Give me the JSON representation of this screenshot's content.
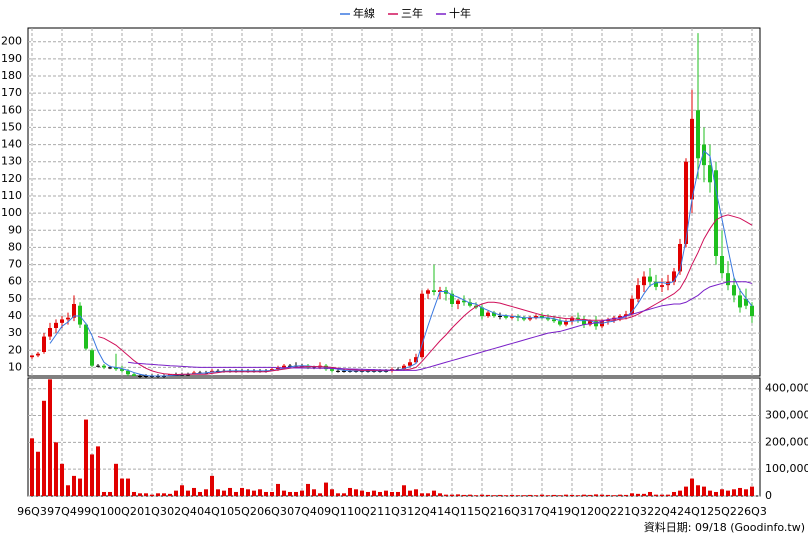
{
  "chart_data": {
    "type": "candlestick",
    "categories": [
      "96Q3",
      null,
      null,
      null,
      null,
      "97Q4",
      null,
      null,
      null,
      null,
      "99Q1",
      null,
      null,
      null,
      null,
      "00Q2",
      null,
      null,
      null,
      null,
      "01Q3",
      null,
      null,
      null,
      null,
      "02Q4",
      null,
      null,
      null,
      null,
      "04Q1",
      null,
      null,
      null,
      null,
      "05Q2",
      null,
      null,
      null,
      null,
      "06Q3",
      null,
      null,
      null,
      null,
      "07Q4",
      null,
      null,
      null,
      null,
      "09Q1",
      null,
      null,
      null,
      null,
      "10Q2",
      null,
      null,
      null,
      null,
      "11Q3",
      null,
      null,
      null,
      null,
      "12Q4",
      null,
      null,
      null,
      null,
      "14Q1",
      null,
      null,
      null,
      null,
      "15Q2",
      null,
      null,
      null,
      null,
      "16Q3",
      null,
      null,
      null,
      null,
      "17Q4",
      null,
      null,
      null,
      null,
      "19Q1",
      null,
      null,
      null,
      null,
      "20Q2",
      null,
      null,
      null,
      null,
      "21Q3",
      null,
      null,
      null,
      null,
      "22Q4",
      null,
      null,
      null,
      null,
      "24Q1",
      null,
      null,
      null,
      null,
      "25Q2",
      null,
      null,
      null,
      null,
      "26Q3"
    ],
    "open": [
      16,
      17,
      19,
      28,
      33,
      36,
      38,
      39,
      46,
      35,
      20,
      11,
      11,
      10,
      10,
      9,
      8,
      6,
      5,
      5,
      5,
      5,
      5,
      5,
      6,
      6,
      6,
      6,
      7,
      7,
      7,
      8,
      8,
      8,
      8,
      8,
      8,
      8,
      8,
      8,
      8,
      9,
      10,
      11,
      11,
      11,
      11,
      10,
      10,
      11,
      9,
      8,
      8,
      8,
      8,
      8,
      8,
      8,
      8,
      8,
      8,
      9,
      9,
      11,
      13,
      16,
      53,
      55,
      54,
      55,
      53,
      47,
      49,
      48,
      46,
      45,
      40,
      42,
      40,
      40,
      39,
      40,
      39,
      38,
      39,
      40,
      39,
      38,
      37,
      35,
      37,
      39,
      38,
      35,
      37,
      34,
      37,
      38,
      39,
      40,
      41,
      50,
      58,
      63,
      60,
      57,
      58,
      60,
      66,
      82,
      108,
      160,
      140,
      128,
      125,
      75,
      65,
      58,
      52,
      50,
      46
    ],
    "high": [
      17,
      19,
      30,
      36,
      38,
      40,
      42,
      52,
      48,
      36,
      21,
      12,
      12,
      11,
      18,
      11,
      9,
      7,
      6,
      6,
      6,
      6,
      6,
      6,
      7,
      7,
      7,
      8,
      8,
      8,
      9,
      9,
      9,
      9,
      9,
      9,
      9,
      9,
      9,
      9,
      10,
      11,
      12,
      12,
      13,
      12,
      12,
      11,
      13,
      12,
      10,
      9,
      9,
      9,
      9,
      9,
      9,
      9,
      9,
      9,
      10,
      10,
      12,
      15,
      18,
      55,
      56,
      70,
      57,
      57,
      55,
      50,
      52,
      50,
      48,
      47,
      43,
      43,
      42,
      41,
      41,
      41,
      40,
      40,
      41,
      42,
      41,
      40,
      39,
      38,
      40,
      42,
      40,
      38,
      40,
      38,
      39,
      40,
      41,
      43,
      52,
      62,
      66,
      68,
      64,
      62,
      64,
      68,
      85,
      132,
      172,
      205,
      150,
      140,
      130,
      90,
      72,
      62,
      56,
      56,
      48
    ],
    "low": [
      15,
      16,
      18,
      26,
      30,
      33,
      35,
      37,
      33,
      20,
      10,
      10,
      9,
      9,
      8,
      7,
      5,
      5,
      4,
      4,
      4,
      4,
      4,
      5,
      5,
      5,
      5,
      6,
      6,
      6,
      7,
      7,
      7,
      7,
      7,
      7,
      7,
      7,
      7,
      7,
      8,
      8,
      9,
      10,
      10,
      10,
      9,
      9,
      9,
      8,
      7,
      7,
      7,
      7,
      7,
      7,
      7,
      7,
      7,
      7,
      7,
      8,
      8,
      10,
      12,
      15,
      50,
      52,
      50,
      49,
      45,
      44,
      46,
      45,
      44,
      38,
      39,
      39,
      38,
      38,
      38,
      37,
      37,
      37,
      38,
      38,
      37,
      36,
      34,
      34,
      35,
      36,
      33,
      34,
      32,
      33,
      35,
      36,
      37,
      38,
      40,
      48,
      54,
      57,
      55,
      54,
      55,
      58,
      64,
      80,
      100,
      120,
      118,
      112,
      70,
      62,
      55,
      48,
      42,
      44,
      36
    ],
    "close": [
      17,
      18,
      28,
      33,
      36,
      38,
      39,
      47,
      35,
      21,
      11,
      11,
      10,
      10,
      9,
      8,
      6,
      5,
      5,
      5,
      5,
      5,
      5,
      6,
      6,
      6,
      6,
      7,
      7,
      7,
      8,
      8,
      8,
      8,
      8,
      8,
      8,
      8,
      8,
      8,
      9,
      10,
      11,
      11,
      11,
      11,
      10,
      10,
      11,
      9,
      8,
      8,
      8,
      8,
      8,
      8,
      8,
      8,
      8,
      8,
      9,
      9,
      11,
      13,
      16,
      53,
      55,
      54,
      55,
      53,
      47,
      49,
      48,
      46,
      45,
      40,
      42,
      40,
      40,
      39,
      40,
      39,
      38,
      39,
      40,
      39,
      38,
      37,
      35,
      37,
      39,
      38,
      35,
      37,
      34,
      37,
      38,
      39,
      40,
      41,
      50,
      58,
      63,
      60,
      57,
      58,
      60,
      66,
      82,
      130,
      155,
      132,
      128,
      118,
      75,
      65,
      58,
      52,
      45,
      46,
      40
    ],
    "up_color": "#e00000",
    "down_color": "#1fbf1f",
    "even_color": "#000000",
    "series": [
      {
        "name": "年線",
        "color": "#3a78e0",
        "values": [
          null,
          null,
          null,
          24,
          29,
          34,
          36.5,
          40,
          40,
          35.5,
          28.5,
          19.5,
          13,
          10.5,
          10,
          9.3,
          8.3,
          7,
          6,
          5.3,
          5,
          5,
          5,
          5.3,
          5.5,
          5.8,
          6,
          6.3,
          6.5,
          6.8,
          7.3,
          7.5,
          7.8,
          8,
          8,
          8,
          8,
          8,
          8,
          8,
          8.3,
          8.8,
          9.5,
          10.3,
          10.8,
          11,
          10.8,
          10.5,
          10.5,
          10,
          9.5,
          9,
          8.3,
          8,
          8,
          8,
          8,
          8,
          8,
          8,
          8.3,
          8.5,
          9.3,
          10.5,
          12.3,
          23.3,
          34.3,
          44.5,
          54.3,
          54.3,
          52.3,
          51,
          49.3,
          47.5,
          47,
          44.8,
          43.3,
          41.8,
          40.5,
          40.3,
          39.8,
          39.5,
          39,
          39,
          39,
          39,
          39,
          38.5,
          37.3,
          36.8,
          37,
          37.3,
          37.3,
          37.3,
          36,
          35.8,
          36.5,
          37,
          38.5,
          39.5,
          42.5,
          47.3,
          53,
          57.8,
          59.5,
          59.5,
          58.8,
          60.3,
          66.5,
          84.5,
          108.3,
          124.8,
          136.3,
          133.3,
          113.3,
          96.5,
          79,
          62.5,
          55,
          50.3,
          45.8
        ]
      },
      {
        "name": "三年",
        "color": "#d0105a",
        "values": [
          null,
          null,
          null,
          null,
          null,
          null,
          null,
          null,
          null,
          null,
          null,
          28,
          27,
          25,
          23,
          20,
          17,
          14,
          11.5,
          9.5,
          8,
          7,
          6.3,
          6,
          5.8,
          6,
          6,
          6,
          6,
          6,
          6.5,
          7,
          7.5,
          7.5,
          7.5,
          7.5,
          7.5,
          7.5,
          7.5,
          7.5,
          8,
          8.5,
          9,
          9.5,
          10,
          10.3,
          10.5,
          10.5,
          10.5,
          10.3,
          10,
          9.5,
          9,
          8.7,
          8.5,
          8.3,
          8.3,
          8.3,
          8.3,
          8.3,
          8.3,
          8.3,
          8.5,
          9,
          10,
          13.5,
          17.5,
          21.5,
          25.5,
          29,
          33,
          36.5,
          40,
          43,
          45.5,
          47,
          48,
          48,
          47.5,
          46.5,
          45.5,
          44.5,
          43.5,
          42.5,
          41.5,
          40.5,
          40,
          39.5,
          39,
          38.5,
          38.5,
          38,
          38,
          37.5,
          37.5,
          37.5,
          37.5,
          37.5,
          38,
          38.5,
          39.5,
          41,
          43,
          45,
          47,
          49,
          51,
          53,
          56,
          62,
          70,
          77,
          85,
          91,
          96,
          98,
          99,
          98,
          97,
          95,
          93
        ]
      },
      {
        "name": "十年",
        "color": "#7a20c8",
        "values": [
          null,
          null,
          null,
          null,
          null,
          null,
          null,
          null,
          null,
          null,
          null,
          null,
          null,
          null,
          null,
          null,
          13,
          12.5,
          12.3,
          12,
          11.8,
          11.5,
          11.3,
          11,
          10.8,
          10.6,
          10.4,
          10.2,
          10,
          10,
          10,
          10,
          10,
          10,
          10,
          10,
          10,
          10,
          10,
          10,
          10,
          9.8,
          9.8,
          9.8,
          9.7,
          9.7,
          9.6,
          9.6,
          9.5,
          9.5,
          9.4,
          9.3,
          9.2,
          9.1,
          9,
          8.9,
          8.8,
          8.7,
          8.6,
          8.5,
          8.4,
          8.3,
          8.3,
          8.3,
          8.3,
          9,
          10,
          11,
          12,
          13,
          14,
          15,
          16,
          17,
          18,
          19,
          20,
          21,
          22,
          23,
          24,
          25,
          26,
          27,
          28,
          29,
          30,
          30.5,
          31,
          32,
          33,
          34,
          35,
          35.5,
          36,
          37,
          38,
          38.5,
          39,
          40,
          41,
          42,
          43,
          44,
          45,
          46,
          46.5,
          47,
          47,
          48,
          50,
          52,
          55,
          57,
          58,
          59,
          60,
          60,
          60,
          60,
          59
        ]
      }
    ],
    "ylim": [
      5,
      208
    ],
    "yticks": [
      10,
      20,
      30,
      40,
      50,
      60,
      70,
      80,
      90,
      100,
      110,
      120,
      130,
      140,
      150,
      160,
      170,
      180,
      190,
      200
    ],
    "volume": {
      "color": "#e00000",
      "ylim": [
        0,
        440000
      ],
      "yticks": [
        0,
        {
          "value": 100000,
          "label": "100,000"
        },
        {
          "value": 200000,
          "label": "200,000"
        },
        {
          "value": 300000,
          "label": "300,000"
        },
        {
          "value": 400000,
          "label": "400,000"
        }
      ],
      "values": [
        215000,
        165000,
        355000,
        435000,
        200000,
        120000,
        40000,
        75000,
        65000,
        285000,
        155000,
        185000,
        15000,
        15000,
        120000,
        65000,
        65000,
        15000,
        10000,
        10000,
        5000,
        10000,
        10000,
        8000,
        20000,
        40000,
        20000,
        30000,
        15000,
        25000,
        75000,
        25000,
        20000,
        30000,
        15000,
        30000,
        25000,
        20000,
        25000,
        15000,
        15000,
        45000,
        20000,
        15000,
        15000,
        20000,
        45000,
        25000,
        10000,
        50000,
        25000,
        10000,
        10000,
        30000,
        25000,
        20000,
        15000,
        20000,
        15000,
        20000,
        15000,
        15000,
        40000,
        20000,
        25000,
        10000,
        10000,
        20000,
        10000,
        5000,
        5000,
        6000,
        4000,
        5000,
        3000,
        5000,
        4000,
        3000,
        4000,
        3000,
        4000,
        3000,
        3000,
        4000,
        3000,
        5000,
        3000,
        4000,
        3000,
        5000,
        4000,
        3000,
        5000,
        4000,
        6000,
        5000,
        4000,
        3000,
        5000,
        4000,
        10000,
        8000,
        8000,
        15000,
        5000,
        5000,
        5000,
        15000,
        20000,
        35000,
        65000,
        40000,
        35000,
        20000,
        15000,
        25000,
        20000,
        25000,
        30000,
        25000,
        35000
      ]
    },
    "grid": true,
    "footer": "資料日期: 09/18 (Goodinfo.tw)"
  }
}
